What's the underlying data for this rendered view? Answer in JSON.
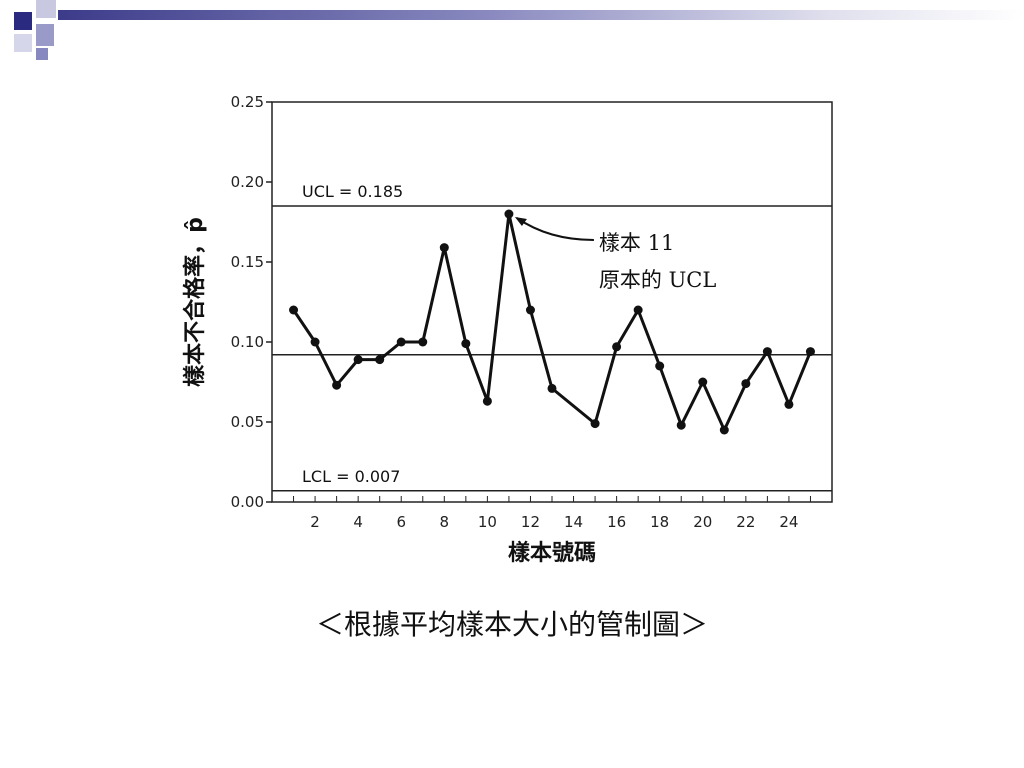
{
  "slide": {
    "caption": "＜根據平均樣本大小的管制圖＞"
  },
  "chart_data": {
    "type": "line",
    "ylabel": "樣本不合格率，p̂",
    "xlabel": "樣本號碼",
    "ylim": [
      0,
      0.25
    ],
    "xlim": [
      0,
      26
    ],
    "y_ticks": [
      "0.00",
      "0.05",
      "0.10",
      "0.15",
      "0.20",
      "0.25"
    ],
    "x_ticks": [
      "2",
      "4",
      "6",
      "8",
      "10",
      "12",
      "14",
      "16",
      "18",
      "20",
      "22",
      "24"
    ],
    "x": [
      1,
      2,
      3,
      4,
      5,
      6,
      7,
      8,
      9,
      10,
      11,
      12,
      13,
      15,
      16,
      17,
      18,
      19,
      20,
      21,
      22,
      23,
      24,
      25
    ],
    "values": [
      0.12,
      0.1,
      0.073,
      0.089,
      0.089,
      0.1,
      0.1,
      0.159,
      0.099,
      0.063,
      0.18,
      0.12,
      0.071,
      0.049,
      0.097,
      0.12,
      0.085,
      0.048,
      0.075,
      0.045,
      0.074,
      0.094,
      0.061,
      0.094
    ],
    "center_line": 0.092,
    "ucl": 0.185,
    "lcl": 0.007,
    "ucl_label": "UCL = 0.185",
    "lcl_label": "LCL = 0.007",
    "annotation": {
      "point_x": 11,
      "line1": "樣本 11",
      "line2": "原本的 UCL"
    },
    "grid": false
  }
}
